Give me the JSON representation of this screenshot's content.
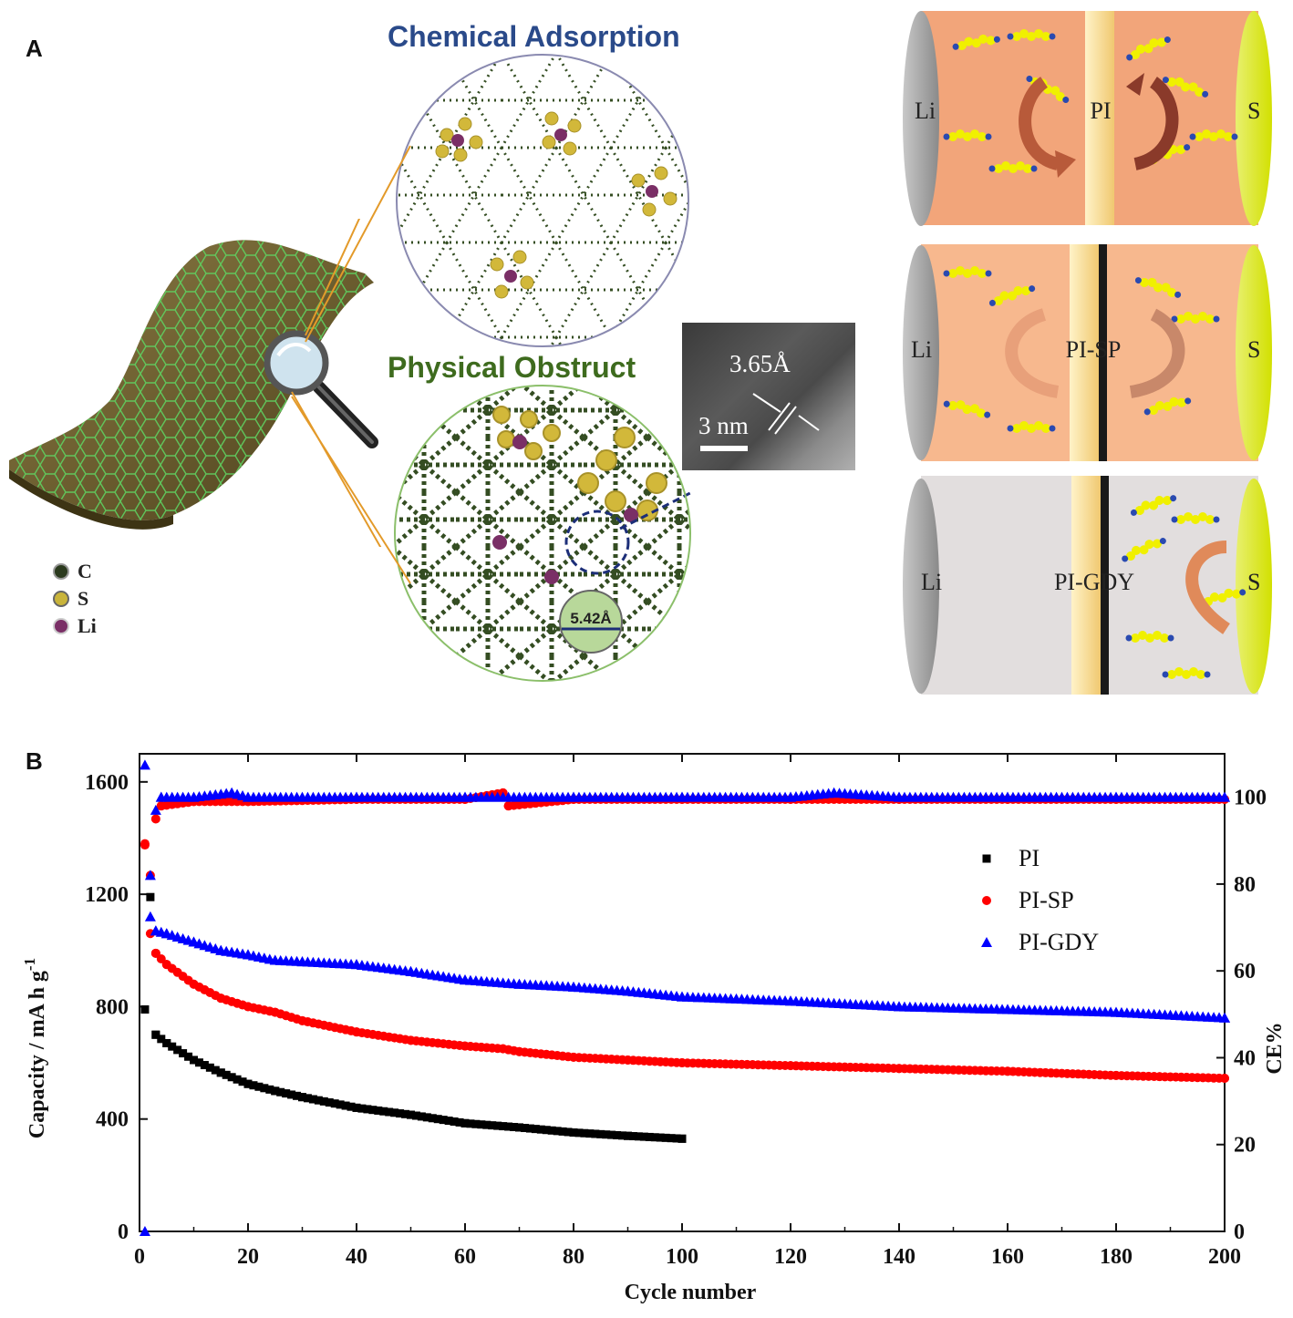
{
  "panel_a": {
    "label": "A",
    "chemical_title": "Chemical Adsorption",
    "physical_title": "Physical Obstruct",
    "tem_spacing": "3.65Å",
    "tem_scale": "3 nm",
    "pore_size": "5.42Å",
    "legend": [
      {
        "symbol": "C",
        "color": "#2b3a1e"
      },
      {
        "symbol": "S",
        "color": "#c9b43a"
      },
      {
        "symbol": "Li",
        "color": "#7a2f66"
      }
    ],
    "cells": [
      {
        "anode": "Li",
        "separator": "PI",
        "cathode": "S"
      },
      {
        "anode": "Li",
        "separator": "PI-SP",
        "cathode": "S"
      },
      {
        "anode": "Li",
        "separator": "PI-GDY",
        "cathode": "S"
      }
    ]
  },
  "panel_b": {
    "label": "B"
  },
  "colors": {
    "pi": "#000000",
    "pi_sp": "#ff0000",
    "pi_gdy": "#0000ff",
    "chem_title": "#2a4a8a",
    "phys_title": "#3e6b1e"
  },
  "chart_data": {
    "type": "scatter",
    "xlabel": "Cycle number",
    "ylabel": "Capacity / mA h g",
    "ylabel_sup": "-1",
    "y2label": "CE%",
    "xlim": [
      0,
      200
    ],
    "ylim": [
      0,
      1700
    ],
    "y2lim": [
      0,
      110
    ],
    "xticks": [
      0,
      20,
      40,
      60,
      80,
      100,
      120,
      140,
      160,
      180,
      200
    ],
    "yticks": [
      0,
      400,
      800,
      1200,
      1600
    ],
    "y2ticks": [
      0,
      20,
      40,
      60,
      80,
      100
    ],
    "legend": [
      "PI",
      "PI-SP",
      "PI-GDY"
    ],
    "series": [
      {
        "name": "PI",
        "marker": "square",
        "capacity_points": [
          [
            1,
            790
          ],
          [
            2,
            1190
          ],
          [
            3,
            700
          ],
          [
            5,
            670
          ],
          [
            10,
            610
          ],
          [
            15,
            565
          ],
          [
            20,
            525
          ],
          [
            25,
            500
          ],
          [
            30,
            478
          ],
          [
            40,
            440
          ],
          [
            50,
            415
          ],
          [
            60,
            385
          ],
          [
            70,
            370
          ],
          [
            80,
            352
          ],
          [
            90,
            340
          ],
          [
            100,
            330
          ]
        ],
        "ce_points": []
      },
      {
        "name": "PI-SP",
        "marker": "circle",
        "capacity_points": [
          [
            1,
            1380
          ],
          [
            2,
            1060
          ],
          [
            3,
            990
          ],
          [
            5,
            950
          ],
          [
            10,
            880
          ],
          [
            15,
            830
          ],
          [
            20,
            800
          ],
          [
            25,
            780
          ],
          [
            30,
            750
          ],
          [
            40,
            710
          ],
          [
            50,
            680
          ],
          [
            60,
            660
          ],
          [
            67,
            650
          ],
          [
            70,
            640
          ],
          [
            80,
            620
          ],
          [
            90,
            610
          ],
          [
            100,
            600
          ],
          [
            120,
            590
          ],
          [
            140,
            580
          ],
          [
            160,
            570
          ],
          [
            180,
            555
          ],
          [
            200,
            545
          ]
        ],
        "ce_points": [
          [
            1,
            89
          ],
          [
            2,
            82
          ],
          [
            3,
            95
          ],
          [
            4,
            98
          ],
          [
            10,
            99
          ],
          [
            20,
            99
          ],
          [
            40,
            99.5
          ],
          [
            60,
            99.5
          ],
          [
            67,
            101
          ],
          [
            68,
            98
          ],
          [
            80,
            99.5
          ],
          [
            100,
            99.5
          ],
          [
            120,
            99.5
          ],
          [
            140,
            99.5
          ],
          [
            160,
            99.5
          ],
          [
            180,
            99.5
          ],
          [
            200,
            99.5
          ]
        ]
      },
      {
        "name": "PI-GDY",
        "marker": "triangle",
        "capacity_points": [
          [
            1,
            1660
          ],
          [
            2,
            1120
          ],
          [
            3,
            1070
          ],
          [
            5,
            1060
          ],
          [
            10,
            1030
          ],
          [
            15,
            1000
          ],
          [
            20,
            985
          ],
          [
            25,
            965
          ],
          [
            30,
            960
          ],
          [
            40,
            950
          ],
          [
            50,
            925
          ],
          [
            60,
            895
          ],
          [
            70,
            880
          ],
          [
            80,
            870
          ],
          [
            90,
            855
          ],
          [
            100,
            835
          ],
          [
            120,
            820
          ],
          [
            140,
            800
          ],
          [
            160,
            790
          ],
          [
            180,
            780
          ],
          [
            200,
            760
          ]
        ],
        "ce_points": [
          [
            1,
            0
          ],
          [
            2,
            82
          ],
          [
            3,
            97
          ],
          [
            4,
            100
          ],
          [
            10,
            100
          ],
          [
            17,
            101
          ],
          [
            20,
            100
          ],
          [
            40,
            100
          ],
          [
            60,
            100
          ],
          [
            80,
            100
          ],
          [
            100,
            100
          ],
          [
            120,
            100
          ],
          [
            128,
            101
          ],
          [
            140,
            100
          ],
          [
            160,
            100
          ],
          [
            180,
            100
          ],
          [
            200,
            100
          ]
        ]
      }
    ]
  }
}
